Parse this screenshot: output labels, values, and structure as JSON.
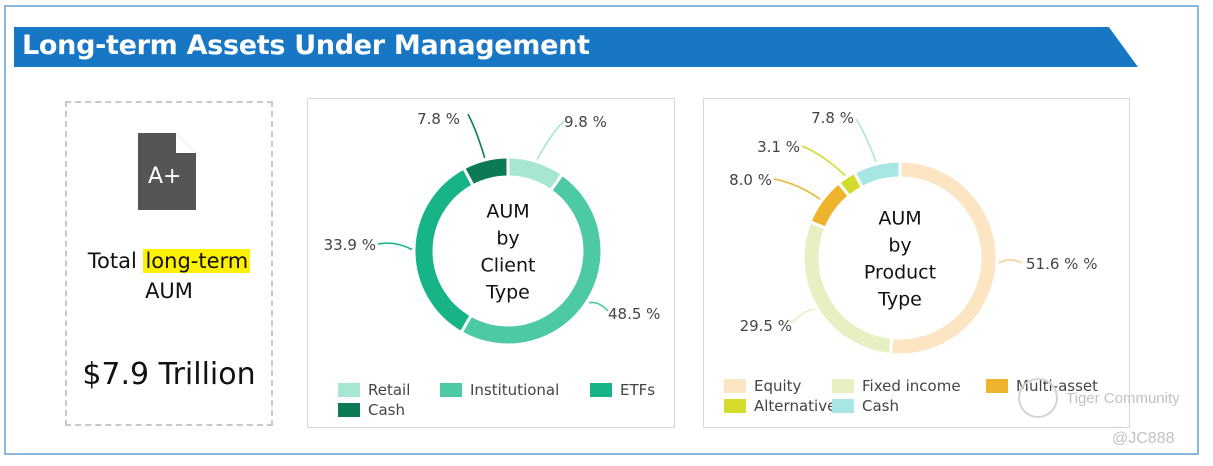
{
  "header": {
    "title": "Long-term Assets Under Management"
  },
  "summary": {
    "label_prefix": "Total ",
    "label_highlight": "long-term",
    "label_suffix": "AUM",
    "value": "$7.9 Trillion",
    "icon": "a-plus-document-icon"
  },
  "colors": {
    "banner": "#1877c4",
    "highlight": "#fef200"
  },
  "chart_data": [
    {
      "type": "pie",
      "variant": "donut",
      "center_label": [
        "AUM",
        "by",
        "Client",
        "Type"
      ],
      "legend_placement": "bottom",
      "slices": [
        {
          "name": "Retail",
          "value": 9.8,
          "label": "9.8 %",
          "color": "#a6e6d2"
        },
        {
          "name": "Institutional",
          "value": 48.5,
          "label": "48.5 %",
          "color": "#4dc9a3"
        },
        {
          "name": "ETFs",
          "value": 33.9,
          "label": "33.9 %",
          "color": "#17b487"
        },
        {
          "name": "Cash",
          "value": 7.8,
          "label": "7.8 %",
          "color": "#0c7a55"
        }
      ]
    },
    {
      "type": "pie",
      "variant": "donut",
      "center_label": [
        "AUM",
        "by",
        "Product",
        "Type"
      ],
      "legend_placement": "bottom",
      "slices": [
        {
          "name": "Equity",
          "value": 51.6,
          "label": "51.6 % %",
          "color": "#fbe5c2"
        },
        {
          "name": "Fixed income",
          "value": 29.5,
          "label": "29.5 %",
          "color": "#e6f0c2"
        },
        {
          "name": "Multi-asset",
          "value": 8.0,
          "label": "8.0 %",
          "color": "#efb42e"
        },
        {
          "name": "Alternatives",
          "value": 3.1,
          "label": "3.1 %",
          "color": "#d3dc2d"
        },
        {
          "name": "Cash",
          "value": 7.8,
          "label": "7.8 %",
          "color": "#a8e6e4"
        }
      ]
    }
  ],
  "watermark": {
    "brand": "Tiger Community",
    "handle": "@JC888"
  }
}
